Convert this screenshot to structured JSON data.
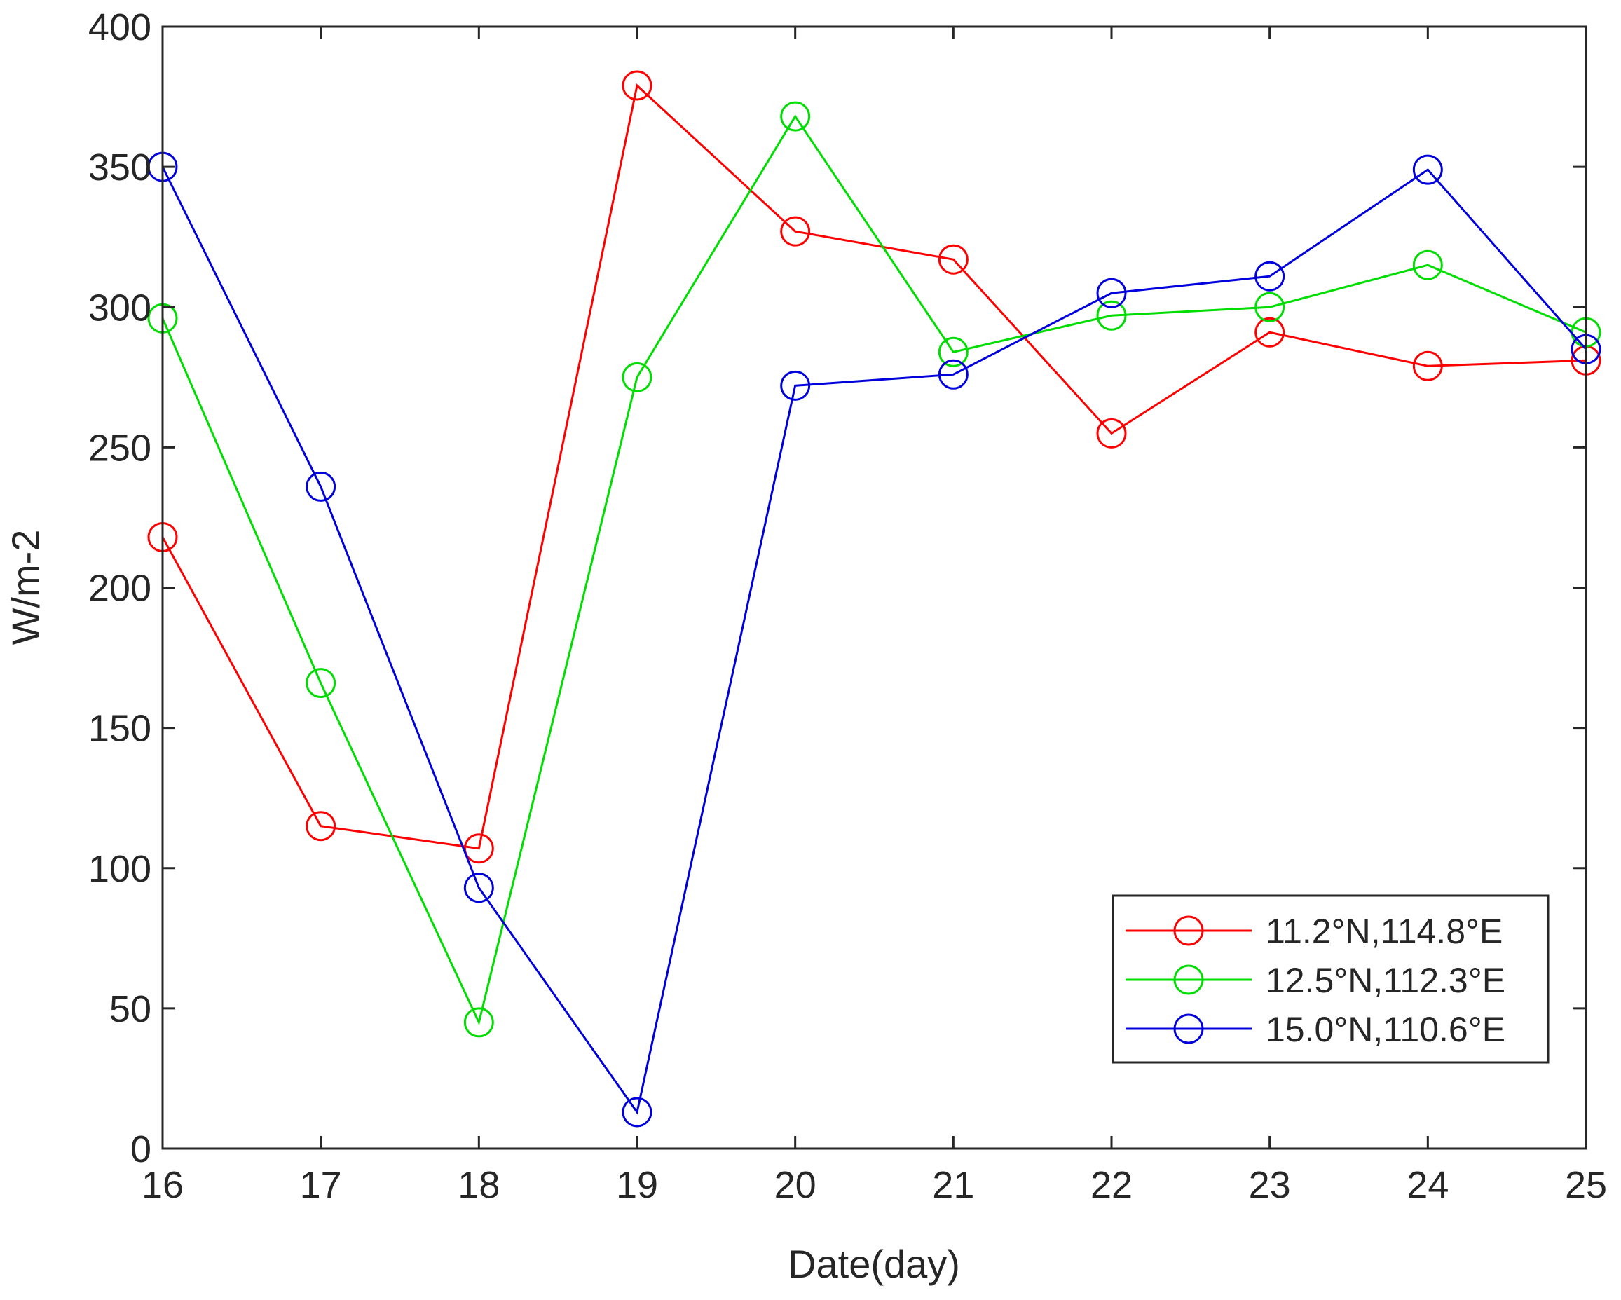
{
  "chart_data": {
    "type": "line",
    "title": "",
    "xlabel": "Date(day)",
    "ylabel": "W/m-2",
    "x": [
      16,
      17,
      18,
      19,
      20,
      21,
      22,
      23,
      24,
      25
    ],
    "xlim": [
      16,
      25
    ],
    "ylim": [
      0,
      400
    ],
    "xticks": [
      "16",
      "17",
      "18",
      "19",
      "20",
      "21",
      "22",
      "23",
      "24",
      "25"
    ],
    "yticks": [
      "0",
      "50",
      "100",
      "150",
      "200",
      "250",
      "300",
      "350",
      "400"
    ],
    "grid": false,
    "legend_position": "bottom-right",
    "marker": "circle",
    "series": [
      {
        "name": "11.2°N,114.8°E",
        "color": "#ff0000",
        "values": [
          218,
          115,
          107,
          379,
          327,
          317,
          255,
          291,
          279,
          281
        ]
      },
      {
        "name": "12.5°N,112.3°E",
        "color": "#00dd00",
        "values": [
          296,
          166,
          45,
          275,
          368,
          284,
          297,
          300,
          315,
          291
        ]
      },
      {
        "name": "15.0°N,110.6°E",
        "color": "#0000dd",
        "values": [
          350,
          236,
          93,
          13,
          272,
          276,
          305,
          311,
          349,
          285
        ]
      }
    ]
  }
}
